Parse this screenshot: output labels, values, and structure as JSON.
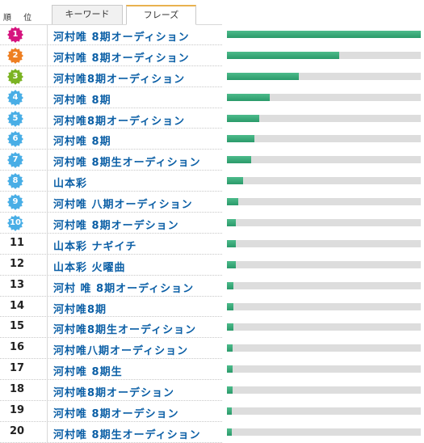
{
  "header": {
    "rank_label": "順 位",
    "tabs": [
      "キーワード",
      "フレーズ"
    ],
    "active_tab": 1
  },
  "colors": {
    "bar": "#32a574",
    "track": "#dddddd",
    "phrase_text": "#0b5fa6",
    "badges": {
      "1": "#d6157f",
      "2": "#ee7f22",
      "3": "#7bb323",
      "4_10": "#49aee6"
    }
  },
  "rows": [
    {
      "rank": "1",
      "phrase": "河村唯 8期オーディション",
      "level_pct": 100
    },
    {
      "rank": "2",
      "phrase": "河村唯 8期オーディション",
      "level_pct": 58
    },
    {
      "rank": "3",
      "phrase": "河村唯8期オーディション",
      "level_pct": 37
    },
    {
      "rank": "4",
      "phrase": "河村唯 8期",
      "level_pct": 22
    },
    {
      "rank": "5",
      "phrase": "河村唯8期オーディション",
      "level_pct": 16.5
    },
    {
      "rank": "6",
      "phrase": "河村唯 8期",
      "level_pct": 14
    },
    {
      "rank": "7",
      "phrase": "河村唯 8期生オーディション",
      "level_pct": 12.5
    },
    {
      "rank": "8",
      "phrase": "山本彩",
      "level_pct": 8.5
    },
    {
      "rank": "9",
      "phrase": "河村唯 八期オーディション",
      "level_pct": 6
    },
    {
      "rank": "10",
      "phrase": "河村唯 8期オーデション",
      "level_pct": 4.5
    },
    {
      "rank": "11",
      "phrase": "山本彩 ナギイチ",
      "level_pct": 4.5
    },
    {
      "rank": "12",
      "phrase": "山本彩 火曜曲",
      "level_pct": 4.5
    },
    {
      "rank": "13",
      "phrase": "河村 唯 8期オーディション",
      "level_pct": 3.5
    },
    {
      "rank": "14",
      "phrase": "河村唯8期",
      "level_pct": 3.5
    },
    {
      "rank": "15",
      "phrase": "河村唯8期生オーディション",
      "level_pct": 3.5
    },
    {
      "rank": "16",
      "phrase": "河村唯八期オーディション",
      "level_pct": 3
    },
    {
      "rank": "17",
      "phrase": "河村唯 8期生",
      "level_pct": 3
    },
    {
      "rank": "18",
      "phrase": "河村唯8期オーデション",
      "level_pct": 3
    },
    {
      "rank": "19",
      "phrase": "河村唯 8期オーデション",
      "level_pct": 2.5
    },
    {
      "rank": "20",
      "phrase": "河村唯 8期生オーディション",
      "level_pct": 2.5
    }
  ]
}
